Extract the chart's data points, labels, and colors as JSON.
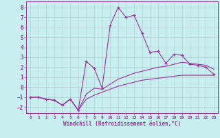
{
  "xlabel": "Windchill (Refroidissement éolien,°C)",
  "bg_color": "#c8eef0",
  "line_color": "#993399",
  "grid_color": "#b0c8cc",
  "xlim": [
    -0.5,
    23.5
  ],
  "ylim": [
    -2.6,
    8.6
  ],
  "xticks": [
    0,
    1,
    2,
    3,
    4,
    5,
    6,
    7,
    8,
    9,
    10,
    11,
    12,
    13,
    14,
    15,
    16,
    17,
    18,
    19,
    20,
    21,
    22,
    23
  ],
  "yticks": [
    -2,
    -1,
    0,
    1,
    2,
    3,
    4,
    5,
    6,
    7,
    8
  ],
  "series_jagged_x": [
    0,
    1,
    2,
    3,
    4,
    5,
    6,
    7,
    8,
    9,
    10,
    11,
    12,
    13,
    14,
    15,
    16,
    17,
    18,
    19,
    20,
    21,
    22,
    23
  ],
  "series_jagged_y": [
    -1,
    -1,
    -1.2,
    -1.3,
    -1.8,
    -1.2,
    -2.3,
    2.6,
    1.9,
    -0.1,
    6.2,
    8.0,
    7.0,
    7.2,
    5.4,
    3.5,
    3.6,
    2.4,
    3.3,
    3.2,
    2.3,
    2.2,
    2.0,
    1.3
  ],
  "series_mid_x": [
    0,
    1,
    2,
    3,
    4,
    5,
    6,
    7,
    8,
    9,
    10,
    11,
    12,
    13,
    14,
    15,
    16,
    17,
    18,
    19,
    20,
    21,
    22,
    23
  ],
  "series_mid_y": [
    -1,
    -1,
    -1.2,
    -1.3,
    -1.8,
    -1.2,
    -2.3,
    -0.7,
    -0.1,
    -0.2,
    0.3,
    0.8,
    1.1,
    1.4,
    1.6,
    1.8,
    2.0,
    2.1,
    2.3,
    2.5,
    2.4,
    2.3,
    2.2,
    1.8
  ],
  "series_low_x": [
    0,
    1,
    2,
    3,
    4,
    5,
    6,
    7,
    8,
    9,
    10,
    11,
    12,
    13,
    14,
    15,
    16,
    17,
    18,
    19,
    20,
    21,
    22,
    23
  ],
  "series_low_y": [
    -1,
    -1,
    -1.2,
    -1.3,
    -1.8,
    -1.2,
    -2.3,
    -1.2,
    -0.8,
    -0.5,
    -0.2,
    0.1,
    0.3,
    0.5,
    0.7,
    0.8,
    0.9,
    1.0,
    1.1,
    1.2,
    1.2,
    1.2,
    1.2,
    1.2
  ]
}
